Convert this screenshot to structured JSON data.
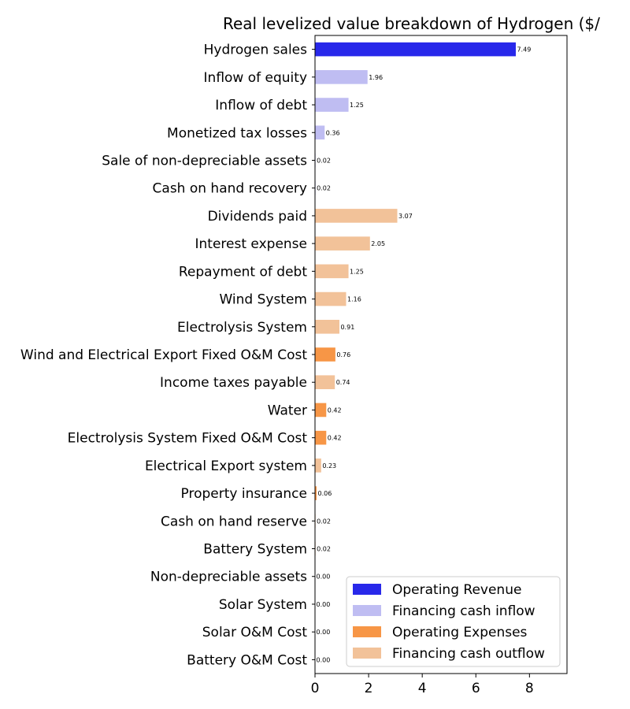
{
  "chart_data": {
    "type": "bar",
    "orientation": "horizontal",
    "title": "Real levelized value breakdown of Hydrogen ($/",
    "xlabel": "",
    "ylabel": "",
    "xlim": [
      0,
      9.4
    ],
    "xticks": [
      0,
      2,
      4,
      6,
      8
    ],
    "grid": false,
    "legend_position": "bottom-right",
    "legend": [
      {
        "name": "Operating Revenue",
        "color": "#2828ea"
      },
      {
        "name": "Financing cash inflow",
        "color": "#bfbdf2"
      },
      {
        "name": "Operating Expenses",
        "color": "#f79646"
      },
      {
        "name": "Financing cash outflow",
        "color": "#f2c299"
      }
    ],
    "bars": [
      {
        "label": "Hydrogen sales",
        "value": 7.49,
        "value_label": "7.49",
        "group": "Operating Revenue"
      },
      {
        "label": "Inflow of equity",
        "value": 1.96,
        "value_label": "1.96",
        "group": "Financing cash inflow"
      },
      {
        "label": "Inflow of debt",
        "value": 1.25,
        "value_label": "1.25",
        "group": "Financing cash inflow"
      },
      {
        "label": "Monetized tax losses",
        "value": 0.36,
        "value_label": "0.36",
        "group": "Financing cash inflow"
      },
      {
        "label": "Sale of non-depreciable assets",
        "value": 0.02,
        "value_label": "0.02",
        "group": "Financing cash inflow"
      },
      {
        "label": "Cash on hand recovery",
        "value": 0.02,
        "value_label": "0.02",
        "group": "Financing cash inflow"
      },
      {
        "label": "Dividends paid",
        "value": 3.07,
        "value_label": "3.07",
        "group": "Financing cash outflow"
      },
      {
        "label": "Interest expense",
        "value": 2.05,
        "value_label": "2.05",
        "group": "Financing cash outflow"
      },
      {
        "label": "Repayment of debt",
        "value": 1.25,
        "value_label": "1.25",
        "group": "Financing cash outflow"
      },
      {
        "label": "Wind System",
        "value": 1.16,
        "value_label": "1.16",
        "group": "Financing cash outflow"
      },
      {
        "label": "Electrolysis System",
        "value": 0.91,
        "value_label": "0.91",
        "group": "Financing cash outflow"
      },
      {
        "label": "Wind and Electrical Export Fixed O&M Cost",
        "value": 0.76,
        "value_label": "0.76",
        "group": "Operating Expenses"
      },
      {
        "label": "Income taxes payable",
        "value": 0.74,
        "value_label": "0.74",
        "group": "Financing cash outflow"
      },
      {
        "label": "Water",
        "value": 0.42,
        "value_label": "0.42",
        "group": "Operating Expenses"
      },
      {
        "label": "Electrolysis System Fixed O&M Cost",
        "value": 0.42,
        "value_label": "0.42",
        "group": "Operating Expenses"
      },
      {
        "label": "Electrical Export system",
        "value": 0.23,
        "value_label": "0.23",
        "group": "Financing cash outflow"
      },
      {
        "label": "Property insurance",
        "value": 0.06,
        "value_label": "0.06",
        "group": "Operating Expenses"
      },
      {
        "label": "Cash on hand reserve",
        "value": 0.02,
        "value_label": "0.02",
        "group": "Financing cash outflow"
      },
      {
        "label": "Battery System",
        "value": 0.02,
        "value_label": "0.02",
        "group": "Financing cash outflow"
      },
      {
        "label": "Non-depreciable assets",
        "value": 0.0,
        "value_label": "0.00",
        "group": "Financing cash outflow"
      },
      {
        "label": "Solar System",
        "value": 0.0,
        "value_label": "0.00",
        "group": "Financing cash outflow"
      },
      {
        "label": "Solar O&M Cost",
        "value": 0.0,
        "value_label": "0.00",
        "group": "Operating Expenses"
      },
      {
        "label": "Battery O&M Cost",
        "value": 0.0,
        "value_label": "0.00",
        "group": "Operating Expenses"
      }
    ]
  }
}
